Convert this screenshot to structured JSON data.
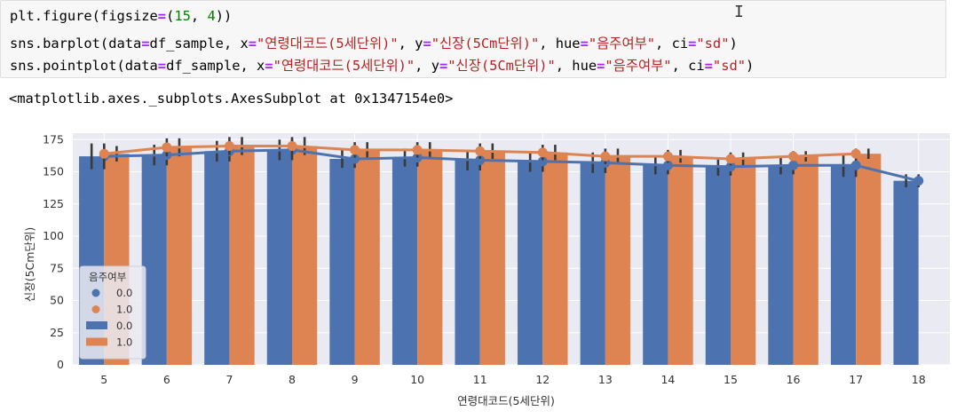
{
  "code_cell": {
    "line1": {
      "a": "plt.figure(figsize",
      "b": "=",
      "c": "(",
      "d": "15",
      "e": ", ",
      "f": "4",
      "g": "))"
    },
    "line2": {
      "prefix": "sns.barplot(data",
      "eq1": "=",
      "mid1": "df_sample, x",
      "eq2": "=",
      "s1": "\"연령대코드(5세단위)\"",
      "mid2": ", y",
      "eq3": "=",
      "s2": "\"신장(5Cm단위)\"",
      "mid3": ", hue",
      "eq4": "=",
      "s3": "\"음주여부\"",
      "mid4": ", ci",
      "eq5": "=",
      "s4": "\"sd\"",
      "end": ")"
    },
    "line3": {
      "prefix": "sns.pointplot(data",
      "eq1": "=",
      "mid1": "df_sample, x",
      "eq2": "=",
      "s1": "\"연령대코드(5세단위)\"",
      "mid2": ", y",
      "eq3": "=",
      "s2": "\"신장(5Cm단위)\"",
      "mid3": ", hue",
      "eq4": "=",
      "s3": "\"음주여부\"",
      "mid4": ", ci",
      "eq5": "=",
      "s4": "\"sd\"",
      "end": ")"
    },
    "cursor_glyph": "I"
  },
  "output": {
    "text": "<matplotlib.axes._subplots.AxesSubplot at 0x1347154e0>"
  },
  "colors": {
    "blue": "#4c72b0",
    "orange": "#dd8452",
    "plot_bg": "#eaeaf2",
    "grid": "#ffffff",
    "err": "#3a3a3a"
  },
  "chart_data": {
    "type": "bar",
    "xlabel": "연령대코드(5세단위)",
    "ylabel": "신장(5Cm단위)",
    "ylim": [
      0,
      180
    ],
    "yticks": [
      0,
      25,
      50,
      75,
      100,
      125,
      150,
      175
    ],
    "categories": [
      "5",
      "6",
      "7",
      "8",
      "9",
      "10",
      "11",
      "12",
      "13",
      "14",
      "15",
      "16",
      "17",
      "18"
    ],
    "grid": true,
    "legend_title": "음주여부",
    "legend_position": "lower-left",
    "series": [
      {
        "name": "0.0",
        "color": "#4c72b0",
        "values": [
          162,
          163,
          166,
          167,
          160,
          161,
          159,
          158,
          157,
          155,
          154,
          155,
          155,
          143
        ],
        "errors": [
          10,
          8,
          8,
          8,
          7,
          7,
          8,
          8,
          8,
          7,
          7,
          7,
          9,
          5
        ]
      },
      {
        "name": "1.0",
        "color": "#dd8452",
        "values": [
          164,
          169,
          170,
          170,
          167,
          167,
          166,
          165,
          162,
          162,
          160,
          162,
          164,
          null
        ],
        "errors": [
          6,
          7,
          7,
          7,
          6,
          6,
          6,
          6,
          6,
          5,
          5,
          4,
          4,
          null
        ]
      }
    ],
    "legend_entries": [
      {
        "label": "0.0",
        "kind": "point",
        "color": "#4c72b0"
      },
      {
        "label": "1.0",
        "kind": "point",
        "color": "#dd8452"
      },
      {
        "label": "0.0",
        "kind": "bar",
        "color": "#4c72b0"
      },
      {
        "label": "1.0",
        "kind": "bar",
        "color": "#dd8452"
      }
    ]
  }
}
